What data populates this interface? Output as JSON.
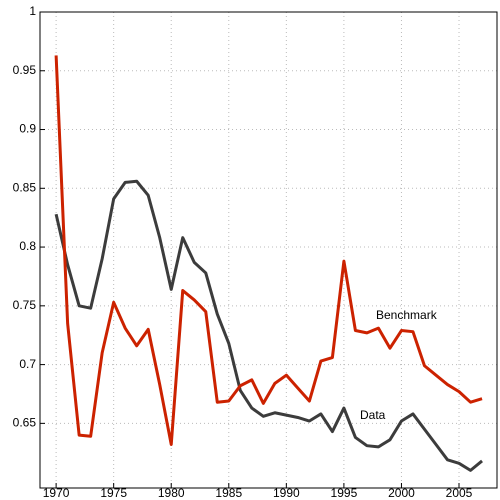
{
  "chart_data": {
    "type": "line",
    "x": [
      1970,
      1971,
      1972,
      1973,
      1974,
      1975,
      1976,
      1977,
      1978,
      1979,
      1980,
      1981,
      1982,
      1983,
      1984,
      1985,
      1986,
      1987,
      1988,
      1989,
      1990,
      1991,
      1992,
      1993,
      1994,
      1995,
      1996,
      1997,
      1998,
      1999,
      2000,
      2001,
      2002,
      2003,
      2004,
      2005,
      2006,
      2007
    ],
    "series": [
      {
        "name": "Data",
        "color": "#3c3c3c",
        "values": [
          0.828,
          0.785,
          0.75,
          0.748,
          0.79,
          0.841,
          0.855,
          0.856,
          0.844,
          0.808,
          0.764,
          0.808,
          0.787,
          0.778,
          0.743,
          0.718,
          0.678,
          0.663,
          0.656,
          0.659,
          0.657,
          0.655,
          0.652,
          0.658,
          0.643,
          0.663,
          0.638,
          0.631,
          0.63,
          0.636,
          0.652,
          0.658,
          0.645,
          0.632,
          0.619,
          0.616,
          0.61,
          0.618
        ]
      },
      {
        "name": "Benchmark",
        "color": "#cc2200",
        "values": [
          0.963,
          0.735,
          0.64,
          0.639,
          0.71,
          0.753,
          0.731,
          0.716,
          0.73,
          0.683,
          0.632,
          0.763,
          0.755,
          0.745,
          0.668,
          0.669,
          0.682,
          0.687,
          0.667,
          0.684,
          0.691,
          0.68,
          0.669,
          0.703,
          0.706,
          0.788,
          0.729,
          0.727,
          0.731,
          0.714,
          0.729,
          0.728,
          0.699,
          0.691,
          0.683,
          0.677,
          0.668,
          0.671
        ]
      }
    ],
    "xlim": [
      1968.6,
      2008.3
    ],
    "xticks": [
      1970,
      1975,
      1980,
      1985,
      1990,
      1995,
      2000,
      2005
    ],
    "ylim": [
      0.595,
      1
    ],
    "yticks": [
      0.65,
      0.7,
      0.75,
      0.8,
      0.85,
      0.9,
      0.95,
      1
    ],
    "grid": true
  }
}
